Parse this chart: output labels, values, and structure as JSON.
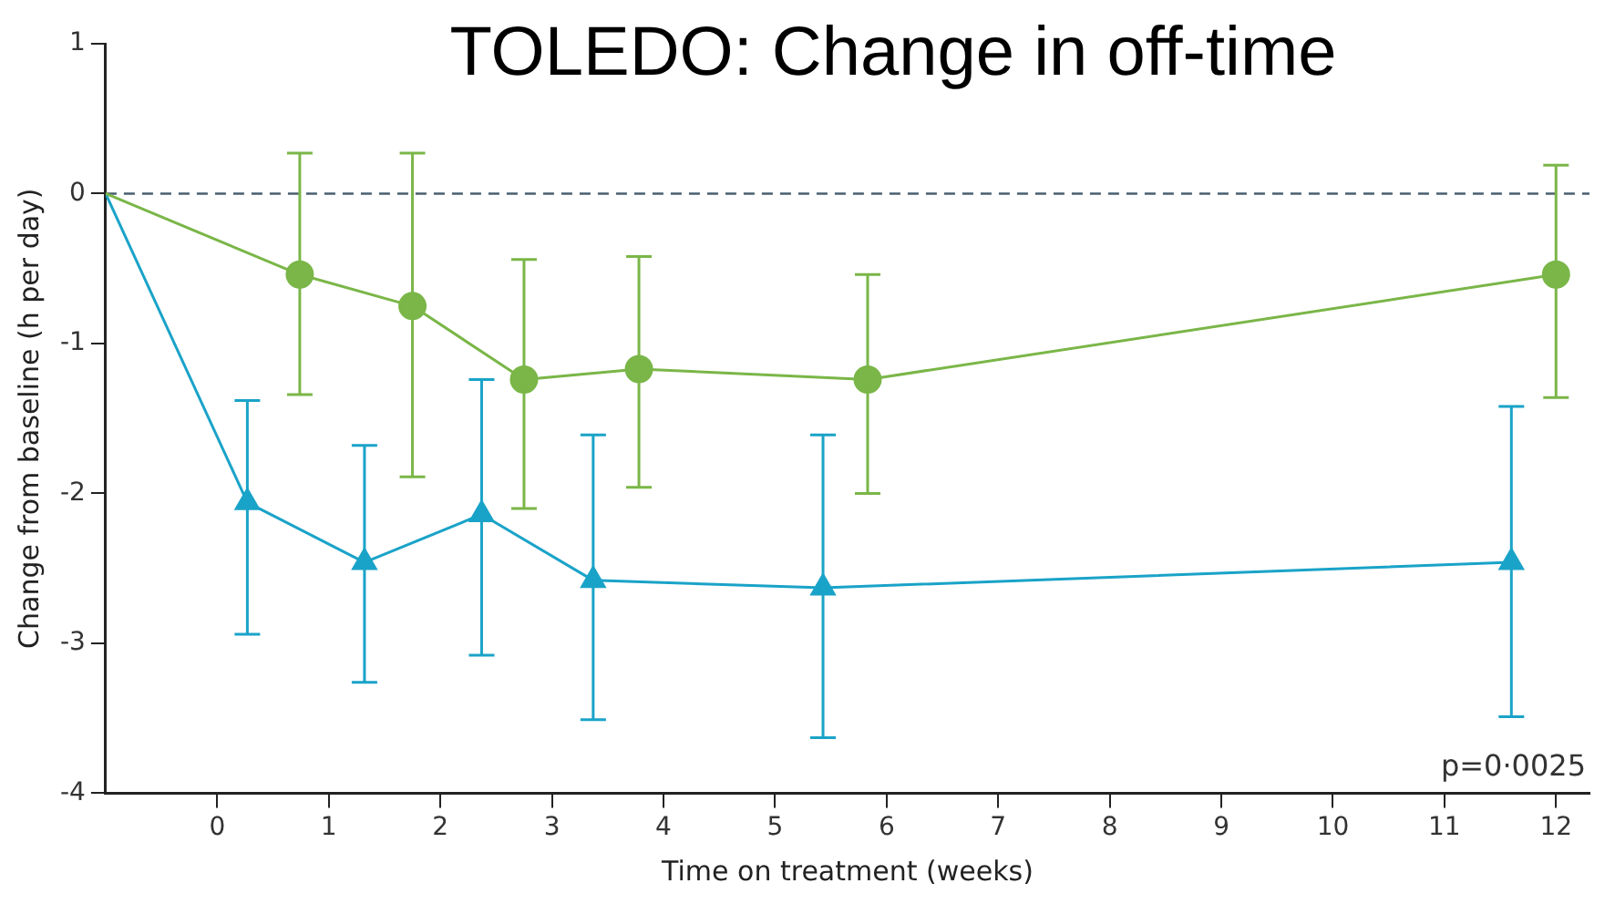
{
  "chart_data": {
    "type": "line",
    "title": "TOLEDO: Change in off-time",
    "xlabel": "Time on treatment (weeks)",
    "ylabel": "Change from baseline (h per day)",
    "xlim": [
      -1,
      12.3
    ],
    "xticks": [
      0,
      1,
      2,
      3,
      4,
      5,
      6,
      7,
      8,
      9,
      10,
      11,
      12
    ],
    "ylim": [
      -4,
      1
    ],
    "yticks": [
      -4,
      -3,
      -2,
      -1,
      0,
      1
    ],
    "grid": false,
    "legend": false,
    "line_style": "solid",
    "ref_lines": [
      {
        "axis": "y",
        "value": 0,
        "color": "#4a6070",
        "line_style": "dashed"
      }
    ],
    "annotations": [
      "p=0·0025"
    ],
    "series": [
      {
        "color": "#7ab648",
        "marker": "circle",
        "x": [
          -1,
          0.74,
          1.75,
          2.75,
          3.78,
          5.83,
          12.0
        ],
        "values": [
          0,
          -0.54,
          -0.75,
          -1.24,
          -1.17,
          -1.24,
          -0.54
        ],
        "errors": [
          null,
          [
            -1.34,
            0.27
          ],
          [
            -1.89,
            0.27
          ],
          [
            -2.1,
            -0.44
          ],
          [
            -1.96,
            -0.42
          ],
          [
            -2.0,
            -0.54
          ],
          [
            -1.36,
            0.19
          ]
        ]
      },
      {
        "color": "#1aa3c8",
        "marker": "triangle",
        "x": [
          -1,
          0.27,
          1.32,
          2.37,
          3.37,
          5.43,
          11.6
        ],
        "values": [
          0,
          -2.06,
          -2.46,
          -2.14,
          -2.58,
          -2.63,
          -2.46
        ],
        "errors": [
          null,
          [
            -2.94,
            -1.38
          ],
          [
            -3.26,
            -1.68
          ],
          [
            -3.08,
            -1.24
          ],
          [
            -3.51,
            -1.61
          ],
          [
            -3.63,
            -1.61
          ],
          [
            -3.49,
            -1.42
          ]
        ]
      }
    ]
  }
}
